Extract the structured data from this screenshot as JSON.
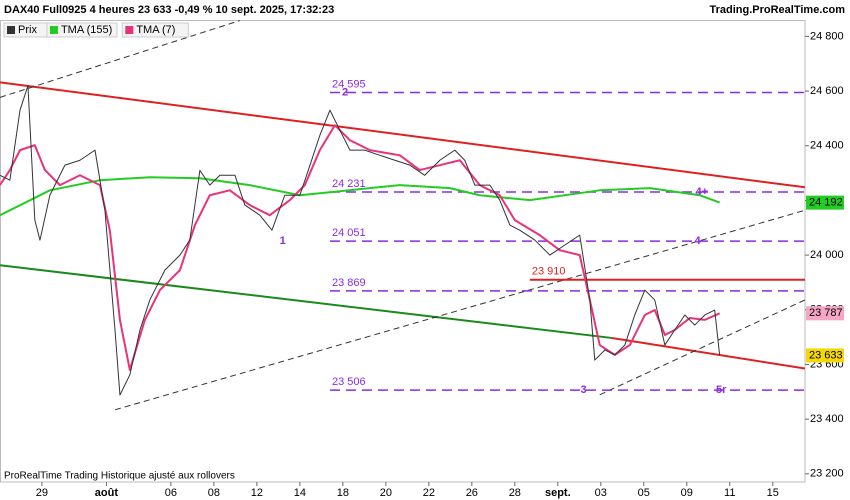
{
  "header": {
    "title": "DAX40 Full0925 4 heures 23 633 -0,49 % 10 sept. 2025, 17:32:23",
    "site": "Trading.ProRealTime.com",
    "footer": "ProRealTime Trading  Historique ajusté aux rollovers"
  },
  "chart_data": {
    "type": "line",
    "xlim": [
      -1.95,
      35.5
    ],
    "ylim": [
      23170,
      24860
    ],
    "xticks": [
      {
        "value": 0,
        "label": "29"
      },
      {
        "value": 3,
        "label": "août"
      },
      {
        "value": 6,
        "label": "06"
      },
      {
        "value": 8,
        "label": "08"
      },
      {
        "value": 10,
        "label": "12"
      },
      {
        "value": 12,
        "label": "14"
      },
      {
        "value": 14,
        "label": "18"
      },
      {
        "value": 16,
        "label": "20"
      },
      {
        "value": 18,
        "label": "22"
      },
      {
        "value": 20,
        "label": "26"
      },
      {
        "value": 22,
        "label": "28"
      },
      {
        "value": 24,
        "label": "sept."
      },
      {
        "value": 26,
        "label": "03"
      },
      {
        "value": 28,
        "label": "05"
      },
      {
        "value": 30,
        "label": "09"
      },
      {
        "value": 32,
        "label": "11"
      },
      {
        "value": 34,
        "label": "15"
      }
    ],
    "yticks": [
      {
        "value": 23200,
        "label": "23 200"
      },
      {
        "value": 23400,
        "label": "23 400"
      },
      {
        "value": 23600,
        "label": "23 600"
      },
      {
        "value": 23800,
        "label": "23 800"
      },
      {
        "value": 24000,
        "label": "24 000"
      },
      {
        "value": 24200,
        "label": "24 200"
      },
      {
        "value": 24400,
        "label": "24 400"
      },
      {
        "value": 24600,
        "label": "24 600"
      },
      {
        "value": 24800,
        "label": "24 800"
      }
    ],
    "series": [
      {
        "name": "Prix",
        "color": "#333333",
        "width": 1,
        "x": [
          -1.95,
          -1.49,
          -1.02,
          -0.65,
          -0.33,
          -0.09,
          0.37,
          1.07,
          1.77,
          2.47,
          2.93,
          3.4,
          3.63,
          4.09,
          4.56,
          5.02,
          5.72,
          6.42,
          6.88,
          7.35,
          7.81,
          8.28,
          8.98,
          9.44,
          10.14,
          10.7,
          11.3,
          12,
          12.47,
          12.93,
          13.4,
          13.86,
          14.33,
          15.02,
          15.72,
          16.42,
          17.12,
          17.81,
          18.51,
          19.21,
          19.67,
          20.14,
          20.84,
          21.3,
          21.77,
          22.23,
          22.93,
          23.63,
          24.33,
          25.02,
          25.49,
          25.72,
          26.19,
          26.65,
          27.12,
          27.58,
          28.05,
          28.51,
          28.98,
          29.44,
          29.91,
          30.37,
          30.84,
          31.3,
          31.53
        ],
        "values": [
          24292,
          24274,
          24530,
          24620,
          24128,
          24055,
          24219,
          24329,
          24347,
          24384,
          24164,
          23726,
          23488,
          23562,
          23726,
          23836,
          23945,
          24000,
          24055,
          24310,
          24256,
          24292,
          24292,
          24183,
          24146,
          24091,
          24219,
          24219,
          24329,
          24438,
          24530,
          24457,
          24384,
          24384,
          24365,
          24347,
          24329,
          24292,
          24347,
          24384,
          24347,
          24256,
          24256,
          24201,
          24110,
          24091,
          24055,
          24000,
          24037,
          24073,
          23836,
          23616,
          23653,
          23635,
          23671,
          23781,
          23872,
          23836,
          23671,
          23726,
          23781,
          23744,
          23781,
          23799,
          23633
        ]
      },
      {
        "name": "TMA (155)",
        "color": "#22cc22",
        "width": 2,
        "x": [
          -1.95,
          0.37,
          2.7,
          5.02,
          7.35,
          9.67,
          12,
          13.4,
          16.65,
          18.98,
          20.37,
          22.7,
          25.95,
          28.28,
          30.6,
          31.53
        ],
        "values": [
          24146,
          24237,
          24274,
          24285,
          24281,
          24256,
          24219,
          24230,
          24256,
          24245,
          24219,
          24201,
          24237,
          24245,
          24219,
          24192
        ]
      },
      {
        "name": "TMA (7)",
        "color": "#e8337a",
        "width": 2,
        "x": [
          -1.95,
          -1.49,
          -1.02,
          -0.33,
          0.14,
          0.84,
          1.77,
          2.7,
          3.16,
          3.63,
          4.09,
          4.79,
          5.49,
          6.42,
          7.12,
          7.81,
          8.74,
          9.67,
          10.6,
          11.53,
          12.23,
          12.93,
          13.63,
          14.33,
          15.26,
          16.65,
          17.58,
          18.51,
          19.44,
          20.37,
          21.3,
          22,
          23.16,
          24.09,
          25.02,
          25.49,
          25.95,
          26.65,
          27.35,
          28.05,
          28.51,
          28.98,
          29.44,
          30.14,
          30.84,
          31.53
        ],
        "values": [
          24256,
          24311,
          24384,
          24402,
          24311,
          24256,
          24292,
          24256,
          24091,
          23763,
          23580,
          23763,
          23872,
          23945,
          24110,
          24219,
          24237,
          24183,
          24146,
          24201,
          24256,
          24384,
          24475,
          24420,
          24384,
          24365,
          24311,
          24329,
          24347,
          24256,
          24219,
          24128,
          24073,
          24018,
          24000,
          23836,
          23671,
          23635,
          23671,
          23781,
          23799,
          23708,
          23726,
          23770,
          23763,
          23787
        ]
      }
    ],
    "levels": [
      {
        "value": 24595,
        "label": "24 595",
        "color": "#8a2be2",
        "from": 13.4
      },
      {
        "value": 24231,
        "label": "24 231",
        "color": "#8a2be2",
        "from": 13.4
      },
      {
        "value": 24051,
        "label": "24 051",
        "color": "#8a2be2",
        "from": 13.4
      },
      {
        "value": 23869,
        "label": "23 869",
        "color": "#8a2be2",
        "from": 13.4
      },
      {
        "value": 23506,
        "label": "23 506",
        "color": "#8a2be2",
        "from": 13.4
      },
      {
        "value": 23910,
        "label": "23 910",
        "color": "#e02020",
        "from": 22.7
      }
    ],
    "trend_lines": [
      {
        "x": [
          -1.95,
          35.5
        ],
        "y": [
          24632,
          24248
        ],
        "color": "#e02020",
        "dash": false
      },
      {
        "x": [
          -1.95,
          26.5
        ],
        "y": [
          23963,
          23697
        ],
        "color": "#1a8a1a",
        "dash": false
      },
      {
        "x": [
          26.5,
          35.5
        ],
        "y": [
          23697,
          23585
        ],
        "color": "#e02020",
        "dash": false
      },
      {
        "x": [
          -1.95,
          9.21
        ],
        "y": [
          24577,
          24858
        ],
        "color": "#333333",
        "dash": true
      },
      {
        "x": [
          3.4,
          35.5
        ],
        "y": [
          23434,
          24164
        ],
        "color": "#333333",
        "dash": true
      },
      {
        "x": [
          25.95,
          35.5
        ],
        "y": [
          23489,
          23836
        ],
        "color": "#333333",
        "dash": true
      }
    ],
    "annotations": [
      {
        "text": "2",
        "x": 14.1,
        "y": 24595
      },
      {
        "text": "1",
        "x": 11.2,
        "y": 24051
      },
      {
        "text": "3",
        "x": 25.2,
        "y": 23506
      },
      {
        "text": "4",
        "x": 30.5,
        "y": 24051
      },
      {
        "text": "4+",
        "x": 30.7,
        "y": 24231
      },
      {
        "text": "5r",
        "x": 31.6,
        "y": 23506
      }
    ],
    "last_values": [
      {
        "value": 24192,
        "label": "24 192",
        "color": "#22cc22"
      },
      {
        "value": 23787,
        "label": "23 787",
        "color": "#f4a6c4"
      },
      {
        "value": 23633,
        "label": "23 633",
        "color": "#f5d800"
      }
    ]
  }
}
